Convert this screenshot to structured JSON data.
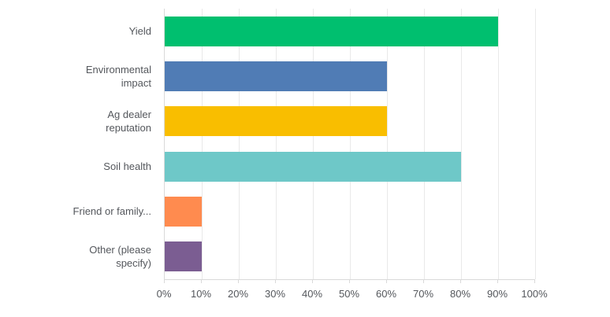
{
  "chart_data": {
    "type": "bar",
    "orientation": "horizontal",
    "title": "",
    "xlabel": "",
    "ylabel": "",
    "categories": [
      "Yield",
      "Environmental impact",
      "Ag dealer reputation",
      "Soil health",
      "Friend or family...",
      "Other (please specify)"
    ],
    "values": [
      90,
      60,
      60,
      80,
      10,
      10
    ],
    "unit": "%",
    "bar_colors": [
      "#00BF6F",
      "#507CB5",
      "#F9BE00",
      "#6EC8C8",
      "#FF8B4F",
      "#7B5D92"
    ],
    "xlim": [
      0,
      100
    ],
    "x_ticks": [
      "0%",
      "10%",
      "20%",
      "30%",
      "40%",
      "50%",
      "60%",
      "70%",
      "80%",
      "90%",
      "100%"
    ],
    "grid": true,
    "legend": false,
    "appearance": {
      "grid_color": "#E9E9E9",
      "axis_color": "#D9D9D9",
      "text_color": "#54575C",
      "background_color": "#FFFFFF"
    }
  }
}
